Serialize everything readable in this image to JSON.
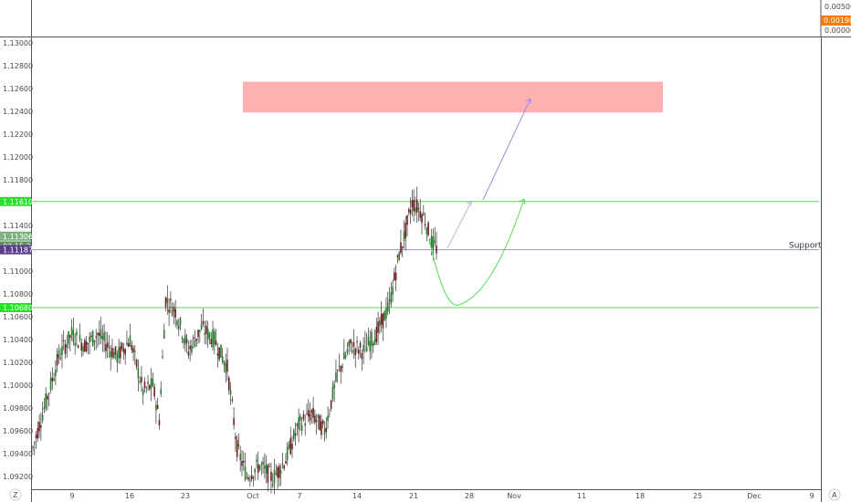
{
  "corner": {
    "left_label": "Z",
    "right_label": "A"
  },
  "indicator_pane": {
    "ticks": [
      "0.00500",
      "0.00000"
    ],
    "value_badge": "0.00190",
    "badge_color": "#f57c00"
  },
  "price_axis": {
    "ticks": [
      "1.13000",
      "1.12800",
      "1.12600",
      "1.12400",
      "1.12200",
      "1.12000",
      "1.11800",
      "1.11400",
      "1.11000",
      "1.10800",
      "1.10600",
      "1.10400",
      "1.10200",
      "1.10000",
      "1.09800",
      "1.09600",
      "1.09400",
      "1.09200"
    ],
    "tick_values": [
      1.13,
      1.128,
      1.126,
      1.124,
      1.122,
      1.12,
      1.118,
      1.114,
      1.11,
      1.108,
      1.106,
      1.104,
      1.102,
      1.1,
      1.098,
      1.096,
      1.094,
      1.092
    ]
  },
  "time_axis": {
    "ticks": [
      "9",
      "16",
      "23",
      "Oct",
      "7",
      "14",
      "21",
      "28",
      "Nov",
      "11",
      "18",
      "25",
      "Dec",
      "9"
    ]
  },
  "badges": [
    {
      "text": "1.11610",
      "color": "#26e226",
      "value": 1.1161
    },
    {
      "text": "1.11306",
      "color": "#7fb27f",
      "value": 1.11306
    },
    {
      "text": "02:15:24",
      "color": "#5f8f5f",
      "value": 1.1122
    },
    {
      "text": "1.11187",
      "color": "#5a3d8a",
      "value": 1.11187
    },
    {
      "text": "1.10680",
      "color": "#26e226",
      "value": 1.1068
    }
  ],
  "annotations": {
    "support_label": "Support",
    "resistance_line": 1.1161,
    "support_line": 1.11187,
    "lower_line": 1.1068,
    "target_zone": [
      1.1239,
      1.1266
    ],
    "zone_color": "#ffb0b0",
    "green_color": "#55dd55",
    "purple_color": "#9b8fe0"
  },
  "chart_data": {
    "type": "candlestick",
    "ylim": [
      1.0908,
      1.1308
    ],
    "x_ticks": [
      "9",
      "16",
      "23",
      "Oct",
      "7",
      "14",
      "21",
      "28",
      "Nov",
      "11",
      "18",
      "25",
      "Dec",
      "9"
    ],
    "anchors": [
      [
        0,
        1.0945
      ],
      [
        8,
        1.0985
      ],
      [
        16,
        1.1025
      ],
      [
        24,
        1.1045
      ],
      [
        32,
        1.1035
      ],
      [
        40,
        1.1045
      ],
      [
        52,
        1.1025
      ],
      [
        60,
        1.104
      ],
      [
        68,
        1.0995
      ],
      [
        74,
        1.1
      ],
      [
        78,
        1.097
      ],
      [
        82,
        1.1075
      ],
      [
        88,
        1.1065
      ],
      [
        96,
        1.103
      ],
      [
        104,
        1.105
      ],
      [
        112,
        1.104
      ],
      [
        120,
        1.1015
      ],
      [
        126,
        1.0945
      ],
      [
        132,
        1.092
      ],
      [
        140,
        1.093
      ],
      [
        148,
        1.0918
      ],
      [
        156,
        1.0935
      ],
      [
        164,
        1.0965
      ],
      [
        172,
        1.0975
      ],
      [
        180,
        1.096
      ],
      [
        188,
        1.101
      ],
      [
        196,
        1.1035
      ],
      [
        204,
        1.103
      ],
      [
        212,
        1.1045
      ],
      [
        220,
        1.107
      ],
      [
        226,
        1.1115
      ],
      [
        230,
        1.1135
      ],
      [
        234,
        1.116
      ],
      [
        238,
        1.1155
      ],
      [
        242,
        1.1145
      ],
      [
        246,
        1.1125
      ],
      [
        249,
        1.112
      ]
    ],
    "x_days": 249,
    "visible_days": 249
  }
}
